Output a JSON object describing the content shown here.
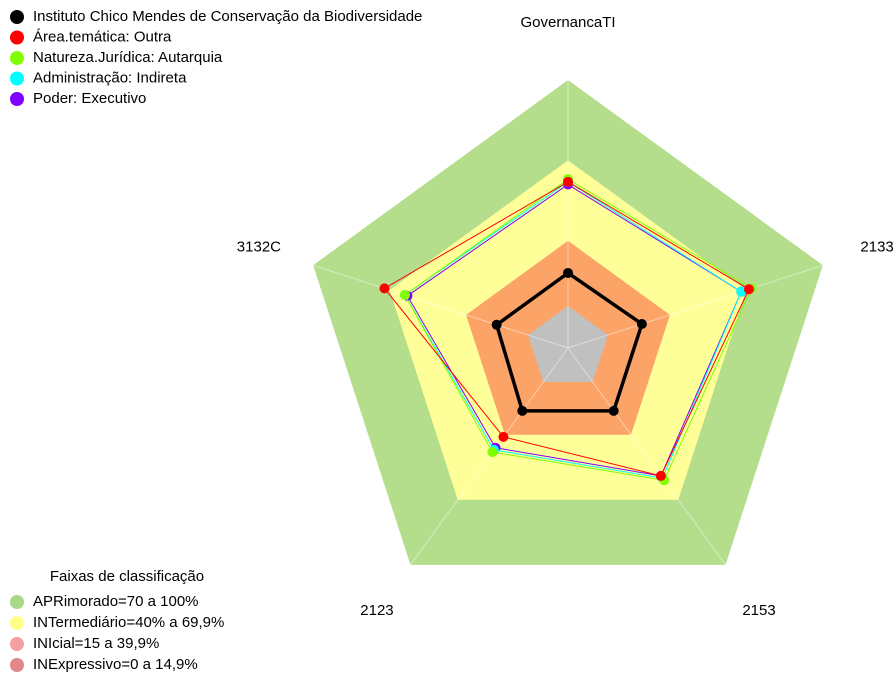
{
  "chart_data": {
    "type": "radar",
    "axes": [
      "GovernancaTI",
      "2133",
      "2153",
      "2123",
      "3132C"
    ],
    "rlim": [
      0,
      100
    ],
    "bands_title": "Faixas de classificação",
    "bands": [
      {
        "name": "APRimorado=70 a 100%",
        "value": 100,
        "color": "#b5de8c",
        "legend_color": "#a8d888"
      },
      {
        "name": "INTermediário=40% a 69,9%",
        "value": 70,
        "color": "#ffff99",
        "legend_color": "#ffff88"
      },
      {
        "name": "INIcial=15 a 39,9%",
        "value": 40,
        "color": "#fca468",
        "legend_color": "#f4a0a0"
      },
      {
        "name": "INExpressivo=0 a 14,9%",
        "value": 15,
        "color": "#a8452c",
        "legend_color": "#e08888"
      }
    ],
    "series": [
      {
        "name": "Instituto Chico Mendes de Conservação da Biodiversidade",
        "color": "#000000",
        "values": [
          28,
          29,
          29,
          29,
          28
        ]
      },
      {
        "name": "Área.temática: Outra",
        "color": "#ff0000",
        "values": [
          62,
          71,
          59,
          41,
          72
        ]
      },
      {
        "name": "Natureza.Jurídica: Autarquia",
        "color": "#80ff00",
        "values": [
          63,
          72,
          61,
          48,
          64
        ]
      },
      {
        "name": "Administração: Indireta",
        "color": "#00ffff",
        "values": [
          62,
          68,
          60,
          47,
          64
        ]
      },
      {
        "name": "Poder: Executivo",
        "color": "#8000ff",
        "values": [
          61,
          68,
          59,
          46,
          63
        ]
      }
    ]
  }
}
